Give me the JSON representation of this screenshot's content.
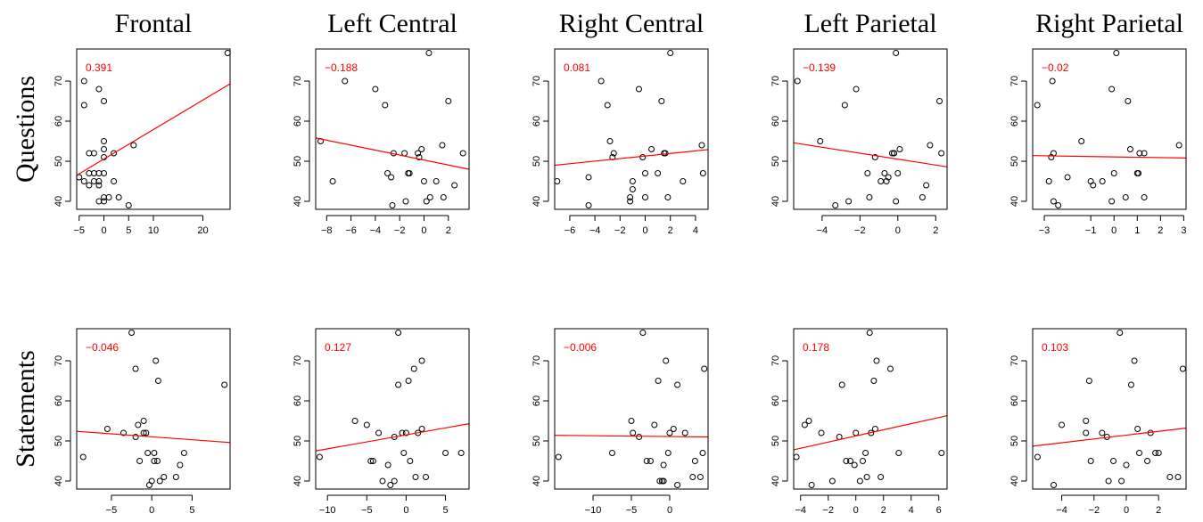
{
  "colors": {
    "fit_line": "#ff0000",
    "corr_text": "#ff0000",
    "point": "#000000"
  },
  "columns": [
    "Frontal",
    "Left Central",
    "Right Central",
    "Left Parietal",
    "Right Parietal"
  ],
  "rows": [
    "Questions",
    "Statements"
  ],
  "chart_data": [
    {
      "type": "scatter",
      "row": "Questions",
      "column": "Frontal",
      "correlation": "0.391",
      "xlim": [
        -5.5,
        25.5
      ],
      "ylim": [
        38,
        78
      ],
      "xticks": [
        -5,
        0,
        5,
        10,
        20
      ],
      "yticks": [
        40,
        50,
        60,
        70
      ],
      "fit": [
        [
          -5.5,
          46.5
        ],
        [
          25.5,
          69.3
        ]
      ],
      "points": [
        [
          25,
          77
        ],
        [
          -4,
          70
        ],
        [
          -1,
          68
        ],
        [
          0,
          65
        ],
        [
          -4,
          64
        ],
        [
          -5,
          46
        ],
        [
          -4,
          45
        ],
        [
          -3,
          47
        ],
        [
          -2,
          47
        ],
        [
          -1,
          47
        ],
        [
          -2,
          45
        ],
        [
          -3,
          44
        ],
        [
          0,
          47
        ],
        [
          -1,
          45
        ],
        [
          -1,
          40
        ],
        [
          0,
          40
        ],
        [
          0,
          41
        ],
        [
          1,
          41
        ],
        [
          2,
          45
        ],
        [
          3,
          41
        ],
        [
          5,
          39
        ],
        [
          6,
          54
        ],
        [
          2,
          52
        ],
        [
          0,
          55
        ],
        [
          0,
          53
        ],
        [
          0,
          51
        ],
        [
          -2,
          52
        ],
        [
          -3,
          52
        ],
        [
          -1,
          44
        ]
      ]
    },
    {
      "type": "scatter",
      "row": "Questions",
      "column": "Left Central",
      "correlation": "−0.188",
      "xlim": [
        -8.9,
        3.7
      ],
      "ylim": [
        38,
        78
      ],
      "xticks": [
        -8,
        -6,
        -4,
        -2,
        0,
        2
      ],
      "yticks": [
        40,
        50,
        60,
        70
      ],
      "fit": [
        [
          -8.9,
          55.8
        ],
        [
          3.7,
          48
        ]
      ],
      "points": [
        [
          -8.5,
          55
        ],
        [
          -7.5,
          45
        ],
        [
          -6.5,
          70
        ],
        [
          -4,
          68
        ],
        [
          -3.2,
          64
        ],
        [
          -3,
          47
        ],
        [
          -2.7,
          46
        ],
        [
          -2.6,
          39
        ],
        [
          -2.5,
          52
        ],
        [
          -1.6,
          52
        ],
        [
          -1.5,
          40
        ],
        [
          -1.3,
          47
        ],
        [
          -1.2,
          47
        ],
        [
          -0.5,
          52
        ],
        [
          -0.4,
          51
        ],
        [
          -0.2,
          53
        ],
        [
          0,
          45
        ],
        [
          0.2,
          40
        ],
        [
          0.4,
          77
        ],
        [
          0.5,
          41
        ],
        [
          1,
          45
        ],
        [
          1.5,
          54
        ],
        [
          1.6,
          41
        ],
        [
          2,
          65
        ],
        [
          2.5,
          44
        ],
        [
          3.2,
          52
        ]
      ]
    },
    {
      "type": "scatter",
      "row": "Questions",
      "column": "Right Central",
      "correlation": "0.081",
      "xlim": [
        -7.2,
        5
      ],
      "ylim": [
        38,
        78
      ],
      "xticks": [
        -6,
        -4,
        -2,
        0,
        2,
        4
      ],
      "yticks": [
        40,
        50,
        60,
        70
      ],
      "fit": [
        [
          -7.2,
          49
        ],
        [
          5,
          52.9
        ]
      ],
      "points": [
        [
          -7,
          45
        ],
        [
          -4.5,
          46
        ],
        [
          -4.5,
          39
        ],
        [
          -3.5,
          70
        ],
        [
          -3,
          64
        ],
        [
          -2.8,
          55
        ],
        [
          -2.6,
          51
        ],
        [
          -2.5,
          52
        ],
        [
          -1.2,
          40
        ],
        [
          -1.2,
          41
        ],
        [
          -1,
          43
        ],
        [
          -1,
          45
        ],
        [
          -0.5,
          68
        ],
        [
          -0.2,
          51
        ],
        [
          0,
          47
        ],
        [
          0,
          41
        ],
        [
          0.5,
          53
        ],
        [
          1,
          47
        ],
        [
          1.3,
          65
        ],
        [
          1.5,
          52
        ],
        [
          1.6,
          52
        ],
        [
          1.8,
          41
        ],
        [
          2,
          77
        ],
        [
          3,
          45
        ],
        [
          4.5,
          54
        ],
        [
          4.6,
          47
        ]
      ]
    },
    {
      "type": "scatter",
      "row": "Questions",
      "column": "Left Parietal",
      "correlation": "−0.139",
      "xlim": [
        -5.5,
        2.6
      ],
      "ylim": [
        38,
        78
      ],
      "xticks": [
        -4,
        -2,
        0,
        2
      ],
      "yticks": [
        40,
        50,
        60,
        70
      ],
      "fit": [
        [
          -5.5,
          54.6
        ],
        [
          2.6,
          48.6
        ]
      ],
      "points": [
        [
          -5.3,
          70
        ],
        [
          -4.1,
          55
        ],
        [
          -3.3,
          39
        ],
        [
          -2.8,
          64
        ],
        [
          -2.6,
          40
        ],
        [
          -2.2,
          68
        ],
        [
          -1.6,
          47
        ],
        [
          -1.5,
          41
        ],
        [
          -1.2,
          51
        ],
        [
          -0.9,
          45
        ],
        [
          -0.7,
          47
        ],
        [
          -0.6,
          45
        ],
        [
          -0.5,
          46
        ],
        [
          -0.3,
          52
        ],
        [
          -0.2,
          52
        ],
        [
          -0.1,
          77
        ],
        [
          -0.1,
          40
        ],
        [
          0,
          47
        ],
        [
          0.1,
          53
        ],
        [
          1.3,
          41
        ],
        [
          1.5,
          44
        ],
        [
          1.7,
          54
        ],
        [
          2.2,
          65
        ],
        [
          2.3,
          52
        ],
        [
          -0.2,
          52
        ]
      ]
    },
    {
      "type": "scatter",
      "row": "Questions",
      "column": "Right Parietal",
      "correlation": "−0.02",
      "xlim": [
        -3.5,
        3.1
      ],
      "ylim": [
        38,
        78
      ],
      "xticks": [
        -3,
        -1,
        0,
        1,
        2,
        3
      ],
      "yticks": [
        40,
        50,
        60,
        70
      ],
      "fit": [
        [
          -3.5,
          51.4
        ],
        [
          3.1,
          50.8
        ]
      ],
      "points": [
        [
          -3.3,
          64
        ],
        [
          -2.8,
          45
        ],
        [
          -2.7,
          51
        ],
        [
          -2.65,
          70
        ],
        [
          -2.6,
          52
        ],
        [
          -2.6,
          40
        ],
        [
          -2.4,
          39
        ],
        [
          -2,
          46
        ],
        [
          -1.4,
          55
        ],
        [
          -1,
          45
        ],
        [
          -0.9,
          44
        ],
        [
          -0.5,
          45
        ],
        [
          -0.1,
          40
        ],
        [
          -0.1,
          68
        ],
        [
          0,
          47
        ],
        [
          0.1,
          77
        ],
        [
          0.5,
          41
        ],
        [
          0.6,
          65
        ],
        [
          0.7,
          53
        ],
        [
          1,
          47
        ],
        [
          1.05,
          47
        ],
        [
          1.1,
          52
        ],
        [
          1.3,
          52
        ],
        [
          1.3,
          41
        ],
        [
          2.8,
          54
        ]
      ]
    },
    {
      "type": "scatter",
      "row": "Statements",
      "column": "Frontal",
      "correlation": "−0.046",
      "xlim": [
        -9.3,
        9.7
      ],
      "ylim": [
        38,
        78
      ],
      "xticks": [
        -5,
        0,
        5
      ],
      "yticks": [
        40,
        50,
        60,
        70
      ],
      "fit": [
        [
          -9.3,
          52.4
        ],
        [
          9.7,
          49.6
        ]
      ],
      "points": [
        [
          -8.5,
          46
        ],
        [
          -5.5,
          53
        ],
        [
          -3.5,
          52
        ],
        [
          -2.5,
          77
        ],
        [
          -2,
          51
        ],
        [
          -2,
          68
        ],
        [
          -1.7,
          54
        ],
        [
          -1.5,
          45
        ],
        [
          -1,
          55
        ],
        [
          -1,
          52
        ],
        [
          -0.7,
          52
        ],
        [
          -0.5,
          47
        ],
        [
          -0.3,
          39
        ],
        [
          0,
          40
        ],
        [
          0.3,
          47
        ],
        [
          0.3,
          45
        ],
        [
          0.5,
          70
        ],
        [
          0.7,
          45
        ],
        [
          0.8,
          65
        ],
        [
          1,
          40
        ],
        [
          1.5,
          41
        ],
        [
          3,
          41
        ],
        [
          3.5,
          44
        ],
        [
          4,
          47
        ],
        [
          9,
          64
        ]
      ]
    },
    {
      "type": "scatter",
      "row": "Statements",
      "column": "Left Central",
      "correlation": "0.127",
      "xlim": [
        -11.5,
        8
      ],
      "ylim": [
        38,
        78
      ],
      "xticks": [
        -10,
        -5,
        0,
        5
      ],
      "yticks": [
        40,
        50,
        60,
        70
      ],
      "fit": [
        [
          -11.5,
          47.5
        ],
        [
          8,
          54.3
        ]
      ],
      "points": [
        [
          -11,
          46
        ],
        [
          -6.5,
          55
        ],
        [
          -5,
          54
        ],
        [
          -4.5,
          45
        ],
        [
          -4.2,
          45
        ],
        [
          -3.5,
          52
        ],
        [
          -3,
          40
        ],
        [
          -2.3,
          44
        ],
        [
          -2,
          39
        ],
        [
          -1.5,
          40
        ],
        [
          -1.5,
          51
        ],
        [
          -1,
          77
        ],
        [
          -1,
          64
        ],
        [
          -0.5,
          52
        ],
        [
          -0.3,
          47
        ],
        [
          0,
          52
        ],
        [
          0.3,
          65
        ],
        [
          0.5,
          45
        ],
        [
          1,
          68
        ],
        [
          1.2,
          41
        ],
        [
          1.5,
          52
        ],
        [
          2,
          53
        ],
        [
          2,
          70
        ],
        [
          2.5,
          41
        ],
        [
          5,
          47
        ],
        [
          7,
          47
        ]
      ]
    },
    {
      "type": "scatter",
      "row": "Statements",
      "column": "Right Central",
      "correlation": "−0.006",
      "xlim": [
        -15,
        5
      ],
      "ylim": [
        38,
        78
      ],
      "xticks": [
        -10,
        -5,
        0
      ],
      "yticks": [
        40,
        50,
        60,
        70
      ],
      "fit": [
        [
          -15,
          51.4
        ],
        [
          5,
          51
        ]
      ],
      "points": [
        [
          -14.5,
          46
        ],
        [
          -7.5,
          47
        ],
        [
          -5,
          55
        ],
        [
          -4.8,
          52
        ],
        [
          -4,
          51
        ],
        [
          -3.5,
          77
        ],
        [
          -3,
          45
        ],
        [
          -2.5,
          45
        ],
        [
          -2,
          54
        ],
        [
          -1.5,
          65
        ],
        [
          -1.3,
          40
        ],
        [
          -1,
          40
        ],
        [
          -0.8,
          40
        ],
        [
          -0.8,
          44
        ],
        [
          -0.5,
          70
        ],
        [
          -0.2,
          47
        ],
        [
          0,
          52
        ],
        [
          0.5,
          53
        ],
        [
          1,
          64
        ],
        [
          1,
          39
        ],
        [
          2,
          52
        ],
        [
          3,
          41
        ],
        [
          3.3,
          45
        ],
        [
          4,
          41
        ],
        [
          4.3,
          47
        ],
        [
          4.5,
          68
        ]
      ]
    },
    {
      "type": "scatter",
      "row": "Statements",
      "column": "Left Parietal",
      "correlation": "0.178",
      "xlim": [
        -4.5,
        6.6
      ],
      "ylim": [
        38,
        78
      ],
      "xticks": [
        -4,
        -2,
        0,
        2,
        4,
        6
      ],
      "yticks": [
        40,
        50,
        60,
        70
      ],
      "fit": [
        [
          -4.5,
          47.8
        ],
        [
          6.6,
          56.3
        ]
      ],
      "points": [
        [
          -4.3,
          46
        ],
        [
          -3.7,
          54
        ],
        [
          -3.4,
          55
        ],
        [
          -3.2,
          39
        ],
        [
          -2.5,
          52
        ],
        [
          -1.7,
          40
        ],
        [
          -1.2,
          51
        ],
        [
          -1,
          64
        ],
        [
          -0.7,
          45
        ],
        [
          -0.4,
          45
        ],
        [
          -0.1,
          44
        ],
        [
          0,
          52
        ],
        [
          0.3,
          40
        ],
        [
          0.5,
          45
        ],
        [
          0.7,
          47
        ],
        [
          0.8,
          41
        ],
        [
          1,
          77
        ],
        [
          1.1,
          52
        ],
        [
          1.3,
          65
        ],
        [
          1.4,
          53
        ],
        [
          1.5,
          70
        ],
        [
          1.8,
          41
        ],
        [
          2.5,
          68
        ],
        [
          3.1,
          47
        ],
        [
          6.2,
          47
        ]
      ]
    },
    {
      "type": "scatter",
      "row": "Statements",
      "column": "Right Parietal",
      "correlation": "0.103",
      "xlim": [
        -5.8,
        3.7
      ],
      "ylim": [
        38,
        78
      ],
      "xticks": [
        -4,
        -2,
        0,
        2
      ],
      "yticks": [
        40,
        50,
        60,
        70
      ],
      "fit": [
        [
          -5.8,
          48.7
        ],
        [
          3.7,
          53.2
        ]
      ],
      "points": [
        [
          -5.5,
          46
        ],
        [
          -4.5,
          39
        ],
        [
          -4,
          54
        ],
        [
          -2.5,
          55
        ],
        [
          -2.5,
          52
        ],
        [
          -2.3,
          65
        ],
        [
          -2.2,
          45
        ],
        [
          -1.5,
          52
        ],
        [
          -1.2,
          51
        ],
        [
          -1.1,
          40
        ],
        [
          -0.8,
          45
        ],
        [
          -0.4,
          77
        ],
        [
          -0.3,
          40
        ],
        [
          0,
          44
        ],
        [
          0.3,
          64
        ],
        [
          0.5,
          70
        ],
        [
          0.7,
          53
        ],
        [
          0.8,
          47
        ],
        [
          1.3,
          45
        ],
        [
          1.5,
          52
        ],
        [
          1.8,
          47
        ],
        [
          2,
          47
        ],
        [
          2.7,
          41
        ],
        [
          3.2,
          41
        ],
        [
          3.5,
          68
        ]
      ]
    }
  ]
}
